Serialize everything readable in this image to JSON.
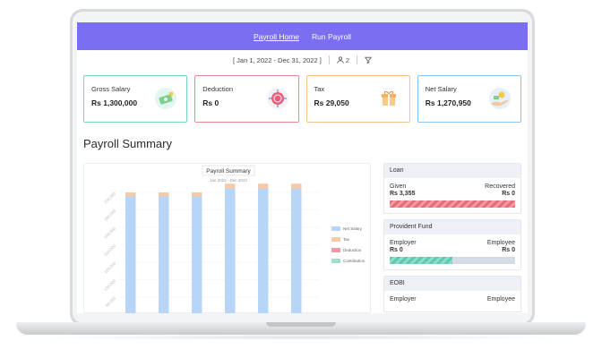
{
  "nav": {
    "items": [
      {
        "label": "Payroll Home",
        "active": true
      },
      {
        "label": "Run Payroll",
        "active": false
      }
    ]
  },
  "filter": {
    "date_range": "[ Jan 1, 2022 - Dec 31, 2022 ]",
    "people_count": "2",
    "icons": [
      "user-icon",
      "filter-icon"
    ]
  },
  "cards": [
    {
      "label": "Gross Salary",
      "value": "Rs 1,300,000",
      "color": "#7dd3c0",
      "icon": "salary-illustration-icon"
    },
    {
      "label": "Deduction",
      "value": "Rs 0",
      "color": "#e88b93",
      "icon": "deduction-illustration-icon"
    },
    {
      "label": "Tax",
      "value": "Rs 29,050",
      "color": "#f5c28f",
      "icon": "tax-gift-illustration-icon"
    },
    {
      "label": "Net Salary",
      "value": "Rs 1,270,950",
      "color": "#8ac4f2",
      "icon": "net-salary-illustration-icon"
    }
  ],
  "section_title": "Payroll Summary",
  "chart_data": {
    "type": "bar",
    "title": "Payroll Summary",
    "subtitle": "Jan 2022 - Dec 2022",
    "y_ticks": [
      "200,000",
      "180,000",
      "160,000",
      "140,000",
      "120,000",
      "100,000",
      "80,000",
      "60,000"
    ],
    "ylim": [
      0,
      200000
    ],
    "categories": [
      "",
      "",
      "",
      "",
      "",
      ""
    ],
    "series": [
      {
        "name": "Net Salary",
        "color": "#b7d5f7",
        "values": [
          195400,
          195400,
          195400,
          204500,
          204500,
          204500
        ]
      },
      {
        "name": "Tax",
        "color": "#f7c9a6",
        "values": [
          4600,
          4600,
          4600,
          5500,
          5500,
          5500
        ]
      },
      {
        "name": "Deduction",
        "color": "#ee9aa3",
        "values": [
          0,
          0,
          0,
          0,
          0,
          0
        ]
      },
      {
        "name": "Contribution",
        "color": "#9fe0cd",
        "values": [
          0,
          0,
          0,
          0,
          0,
          0
        ]
      }
    ],
    "legend_position": "right"
  },
  "loan": {
    "title": "Loan",
    "left_label": "Given",
    "right_label": "Recovered",
    "left_value": "Rs 3,355",
    "right_value": "Rs 0",
    "color": "#e66d7a"
  },
  "provident_fund": {
    "title": "Provident Fund",
    "left_label": "Employer",
    "right_label": "Employee",
    "left_value": "Rs 0",
    "right_value": "Rs 0",
    "fill": 0.5,
    "color": "#5ec9ae"
  },
  "eobi": {
    "title": "EOBI",
    "left_label": "Employer",
    "right_label": "Employee"
  }
}
